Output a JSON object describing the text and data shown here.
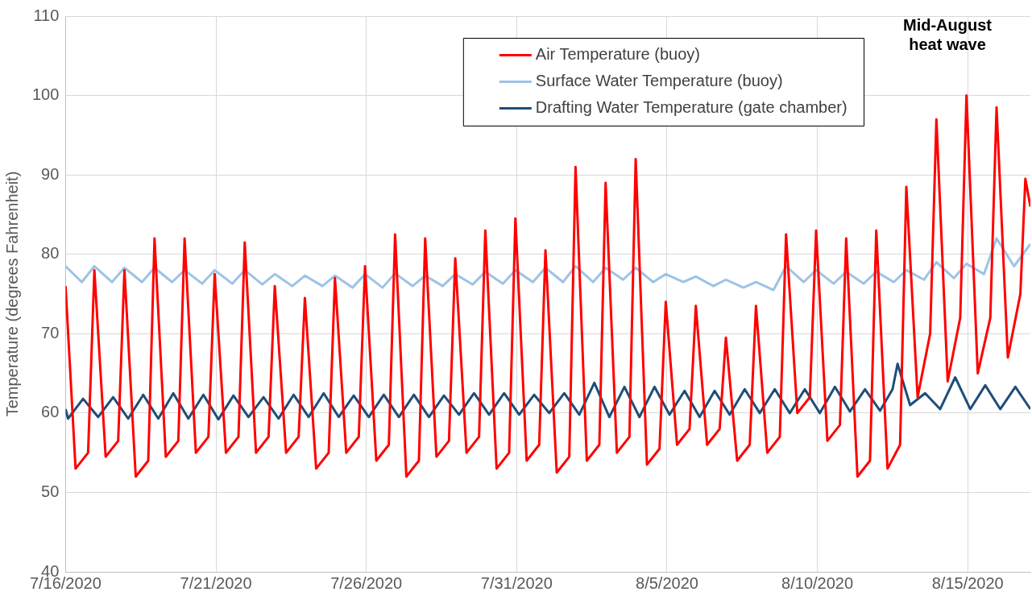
{
  "chart_data": {
    "type": "line",
    "ylabel": "Temperature (degrees Fahrenheit)",
    "annotations": [
      "Mid-August heat wave"
    ],
    "xlim": [
      "2020-07-16",
      "2020-08-17T02:00"
    ],
    "xticks": [
      {
        "value": "2020-07-16",
        "label": "7/16/2020"
      },
      {
        "value": "2020-07-21",
        "label": "7/21/2020"
      },
      {
        "value": "2020-07-26",
        "label": "7/26/2020"
      },
      {
        "value": "2020-07-31",
        "label": "7/31/2020"
      },
      {
        "value": "2020-08-05",
        "label": "8/5/2020"
      },
      {
        "value": "2020-08-10",
        "label": "8/10/2020"
      },
      {
        "value": "2020-08-15",
        "label": "8/15/2020"
      }
    ],
    "ylim": [
      40,
      110
    ],
    "yticks": [
      40,
      50,
      60,
      70,
      80,
      90,
      100,
      110
    ],
    "grid": true,
    "legend": "top right",
    "marker": "none",
    "line_style": "solid",
    "series": [
      {
        "name": "Air Temperature (buoy)",
        "color": "#ff0000",
        "x": [
          "2020-07-16T00:00",
          "2020-07-16T08:00",
          "2020-07-16T18:00",
          "2020-07-16T23:00",
          "2020-07-17T08:00",
          "2020-07-17T18:00",
          "2020-07-17T23:00",
          "2020-07-18T08:00",
          "2020-07-18T18:00",
          "2020-07-18T23:00",
          "2020-07-19T08:00",
          "2020-07-19T18:00",
          "2020-07-19T23:00",
          "2020-07-20T08:00",
          "2020-07-20T18:00",
          "2020-07-20T23:00",
          "2020-07-21T08:00",
          "2020-07-21T18:00",
          "2020-07-21T23:00",
          "2020-07-22T08:00",
          "2020-07-22T18:00",
          "2020-07-22T23:00",
          "2020-07-23T08:00",
          "2020-07-23T18:00",
          "2020-07-23T23:00",
          "2020-07-24T08:00",
          "2020-07-24T18:00",
          "2020-07-24T23:00",
          "2020-07-25T08:00",
          "2020-07-25T18:00",
          "2020-07-25T23:00",
          "2020-07-26T08:00",
          "2020-07-26T18:00",
          "2020-07-26T23:00",
          "2020-07-27T08:00",
          "2020-07-27T18:00",
          "2020-07-27T23:00",
          "2020-07-28T08:00",
          "2020-07-28T18:00",
          "2020-07-28T23:00",
          "2020-07-29T08:00",
          "2020-07-29T18:00",
          "2020-07-29T23:00",
          "2020-07-30T08:00",
          "2020-07-30T18:00",
          "2020-07-30T23:00",
          "2020-07-31T08:00",
          "2020-07-31T18:00",
          "2020-07-31T23:00",
          "2020-08-01T08:00",
          "2020-08-01T18:00",
          "2020-08-01T23:00",
          "2020-08-02T08:00",
          "2020-08-02T18:00",
          "2020-08-02T23:00",
          "2020-08-03T08:00",
          "2020-08-03T18:00",
          "2020-08-03T23:00",
          "2020-08-04T08:00",
          "2020-08-04T18:00",
          "2020-08-04T23:00",
          "2020-08-05T08:00",
          "2020-08-05T18:00",
          "2020-08-05T23:00",
          "2020-08-06T08:00",
          "2020-08-06T18:00",
          "2020-08-06T23:00",
          "2020-08-07T08:00",
          "2020-08-07T18:00",
          "2020-08-07T23:00",
          "2020-08-08T08:00",
          "2020-08-08T18:00",
          "2020-08-08T23:00",
          "2020-08-09T08:00",
          "2020-08-09T18:00",
          "2020-08-09T23:00",
          "2020-08-10T08:00",
          "2020-08-10T18:00",
          "2020-08-10T23:00",
          "2020-08-11T08:00",
          "2020-08-11T18:00",
          "2020-08-11T23:00",
          "2020-08-12T08:00",
          "2020-08-12T18:00",
          "2020-08-12T23:00",
          "2020-08-13T08:00",
          "2020-08-13T18:00",
          "2020-08-13T23:00",
          "2020-08-14T08:00",
          "2020-08-14T18:00",
          "2020-08-14T23:00",
          "2020-08-15T08:00",
          "2020-08-15T18:00",
          "2020-08-15T23:00",
          "2020-08-16T08:00",
          "2020-08-16T18:00",
          "2020-08-16T22:00",
          "2020-08-17T02:00"
        ],
        "values": [
          76,
          53,
          55,
          78,
          54.5,
          56.5,
          78,
          52,
          54,
          82,
          54.5,
          56.5,
          82,
          55,
          57,
          77.5,
          55,
          57,
          81.5,
          55,
          57,
          76,
          55,
          57,
          74.5,
          53,
          55,
          77,
          55,
          57,
          78.5,
          54,
          56,
          82.5,
          52,
          54,
          82,
          54.5,
          56.5,
          79.5,
          55,
          57,
          83,
          53,
          55,
          84.5,
          54,
          56,
          80.5,
          52.5,
          54.5,
          91,
          54,
          56,
          89,
          55,
          57,
          92,
          53.5,
          55.5,
          74,
          56,
          58,
          73.5,
          56,
          58,
          69.5,
          54,
          56,
          73.5,
          55,
          57,
          82.5,
          60,
          62,
          83,
          56.5,
          58.5,
          82,
          52,
          54,
          83,
          53,
          56,
          88.5,
          62,
          70,
          97,
          64,
          72,
          100,
          65,
          72,
          98.5,
          67,
          75,
          89.5,
          86
        ]
      },
      {
        "name": "Surface Water Temperature (buoy)",
        "color": "#9dc3e6",
        "x": [
          "2020-07-16T00:00",
          "2020-07-16T13:00",
          "2020-07-16T23:00",
          "2020-07-17T13:00",
          "2020-07-17T23:00",
          "2020-07-18T13:00",
          "2020-07-18T23:00",
          "2020-07-19T13:00",
          "2020-07-19T23:00",
          "2020-07-20T13:00",
          "2020-07-20T23:00",
          "2020-07-21T13:00",
          "2020-07-21T23:00",
          "2020-07-22T13:00",
          "2020-07-22T23:00",
          "2020-07-23T13:00",
          "2020-07-23T23:00",
          "2020-07-24T13:00",
          "2020-07-24T23:00",
          "2020-07-25T13:00",
          "2020-07-25T23:00",
          "2020-07-26T13:00",
          "2020-07-26T23:00",
          "2020-07-27T13:00",
          "2020-07-27T23:00",
          "2020-07-28T13:00",
          "2020-07-28T23:00",
          "2020-07-29T13:00",
          "2020-07-29T23:00",
          "2020-07-30T13:00",
          "2020-07-30T23:00",
          "2020-07-31T13:00",
          "2020-07-31T23:00",
          "2020-08-01T13:00",
          "2020-08-01T23:00",
          "2020-08-02T13:00",
          "2020-08-02T23:00",
          "2020-08-03T13:00",
          "2020-08-03T23:00",
          "2020-08-04T13:00",
          "2020-08-04T23:00",
          "2020-08-05T13:00",
          "2020-08-05T23:00",
          "2020-08-06T13:00",
          "2020-08-06T23:00",
          "2020-08-07T13:00",
          "2020-08-07T23:00",
          "2020-08-08T13:00",
          "2020-08-08T23:00",
          "2020-08-09T13:00",
          "2020-08-09T23:00",
          "2020-08-10T13:00",
          "2020-08-10T23:00",
          "2020-08-11T13:00",
          "2020-08-11T23:00",
          "2020-08-12T13:00",
          "2020-08-12T23:00",
          "2020-08-13T13:00",
          "2020-08-13T23:00",
          "2020-08-14T13:00",
          "2020-08-14T23:00",
          "2020-08-15T13:00",
          "2020-08-15T23:00",
          "2020-08-16T13:00",
          "2020-08-17T02:00"
        ],
        "values": [
          78.5,
          76.5,
          78.5,
          76.5,
          78.3,
          76.5,
          78.3,
          76.5,
          78,
          76.3,
          78,
          76.3,
          78,
          76.2,
          77.5,
          76,
          77.3,
          76,
          77.3,
          75.8,
          77.5,
          75.8,
          77.6,
          76,
          77.3,
          76,
          77.5,
          76.2,
          77.8,
          76.3,
          78,
          76.5,
          78.3,
          76.5,
          78.5,
          76.5,
          78.3,
          76.8,
          78.3,
          76.5,
          77.5,
          76.5,
          77.2,
          76,
          76.8,
          75.8,
          76.5,
          75.5,
          78.5,
          76.5,
          78,
          76.3,
          77.8,
          76.3,
          77.8,
          76.5,
          78,
          76.8,
          79,
          77,
          78.8,
          77.5,
          82,
          78.5,
          81.3
        ]
      },
      {
        "name": "Drafting Water Temperature (gate chamber)",
        "color": "#1f4e79",
        "x": [
          "2020-07-16T00:00",
          "2020-07-16T02:00",
          "2020-07-16T14:00",
          "2020-07-17T02:00",
          "2020-07-17T14:00",
          "2020-07-18T02:00",
          "2020-07-18T14:00",
          "2020-07-19T02:00",
          "2020-07-19T14:00",
          "2020-07-20T02:00",
          "2020-07-20T14:00",
          "2020-07-21T02:00",
          "2020-07-21T14:00",
          "2020-07-22T02:00",
          "2020-07-22T14:00",
          "2020-07-23T02:00",
          "2020-07-23T14:00",
          "2020-07-24T02:00",
          "2020-07-24T14:00",
          "2020-07-25T02:00",
          "2020-07-25T14:00",
          "2020-07-26T02:00",
          "2020-07-26T14:00",
          "2020-07-27T02:00",
          "2020-07-27T14:00",
          "2020-07-28T02:00",
          "2020-07-28T14:00",
          "2020-07-29T02:00",
          "2020-07-29T14:00",
          "2020-07-30T02:00",
          "2020-07-30T14:00",
          "2020-07-31T02:00",
          "2020-07-31T14:00",
          "2020-08-01T02:00",
          "2020-08-01T14:00",
          "2020-08-02T02:00",
          "2020-08-02T14:00",
          "2020-08-03T02:00",
          "2020-08-03T14:00",
          "2020-08-04T02:00",
          "2020-08-04T14:00",
          "2020-08-05T02:00",
          "2020-08-05T14:00",
          "2020-08-06T02:00",
          "2020-08-06T14:00",
          "2020-08-07T02:00",
          "2020-08-07T14:00",
          "2020-08-08T02:00",
          "2020-08-08T14:00",
          "2020-08-09T02:00",
          "2020-08-09T14:00",
          "2020-08-10T02:00",
          "2020-08-10T14:00",
          "2020-08-11T02:00",
          "2020-08-11T14:00",
          "2020-08-12T02:00",
          "2020-08-12T12:00",
          "2020-08-12T16:00",
          "2020-08-13T02:00",
          "2020-08-13T14:00",
          "2020-08-14T02:00",
          "2020-08-14T14:00",
          "2020-08-15T02:00",
          "2020-08-15T14:00",
          "2020-08-16T02:00",
          "2020-08-16T14:00",
          "2020-08-17T02:00"
        ],
        "values": [
          60.5,
          59.3,
          61.8,
          59.5,
          62,
          59.3,
          62.3,
          59.3,
          62.5,
          59.3,
          62.3,
          59.2,
          62.2,
          59.5,
          62,
          59.3,
          62.3,
          59.5,
          62.5,
          59.5,
          62.2,
          59.5,
          62.3,
          59.5,
          62.3,
          59.5,
          62.2,
          59.8,
          62.5,
          59.8,
          62.5,
          59.8,
          62.3,
          60,
          62.5,
          59.8,
          63.8,
          59.5,
          63.3,
          59.5,
          63.3,
          59.8,
          62.8,
          59.5,
          62.8,
          59.8,
          63,
          60,
          63,
          60,
          63,
          60,
          63.3,
          60.2,
          63,
          60.3,
          63,
          66.2,
          61,
          62.5,
          60.5,
          64.5,
          60.5,
          63.5,
          60.5,
          63.3,
          60.5
        ]
      }
    ]
  }
}
